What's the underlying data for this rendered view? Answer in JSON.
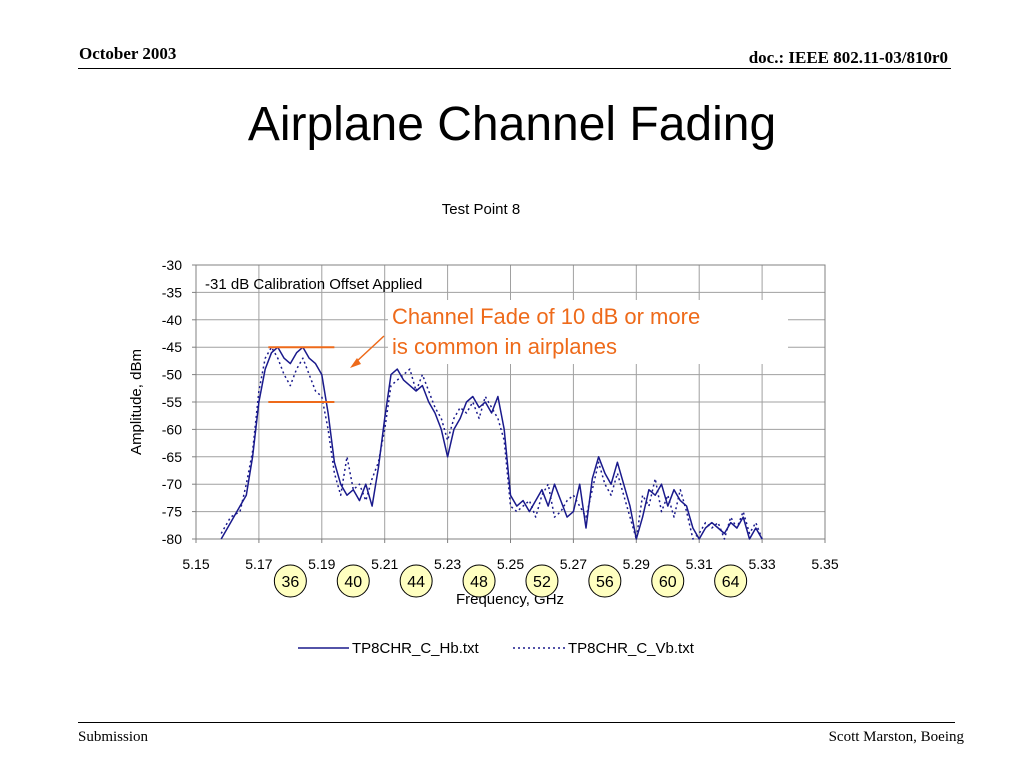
{
  "header": {
    "date": "October 2003",
    "doc": "doc.: IEEE 802.11-03/810r0"
  },
  "slide": {
    "title": "Airplane Channel Fading"
  },
  "footer": {
    "left": "Submission",
    "right": "Scott Marston, Boeing"
  },
  "annotation": {
    "callout_line1": "Channel Fade of 10 dB or more",
    "callout_line2": "is common in airplanes",
    "marker_levels": [
      -45,
      -55
    ],
    "marker_range": [
      5.173,
      5.194
    ],
    "color": "#ee6a1a"
  },
  "channels": [
    {
      "label": "36",
      "freq": 5.18
    },
    {
      "label": "40",
      "freq": 5.2
    },
    {
      "label": "44",
      "freq": 5.22
    },
    {
      "label": "48",
      "freq": 5.24
    },
    {
      "label": "52",
      "freq": 5.26
    },
    {
      "label": "56",
      "freq": 5.28
    },
    {
      "label": "60",
      "freq": 5.3
    },
    {
      "label": "64",
      "freq": 5.32
    }
  ],
  "chart_data": {
    "type": "line",
    "title": "Test Point 8",
    "subtitle": "-31 dB Calibration Offset Applied",
    "xlabel": "Frequency, GHz",
    "ylabel": "Amplitude, dBm",
    "xlim": [
      5.15,
      5.35
    ],
    "ylim": [
      -80,
      -30
    ],
    "xticks": [
      "5.15",
      "5.17",
      "5.19",
      "5.21",
      "5.23",
      "5.25",
      "5.27",
      "5.29",
      "5.31",
      "5.33",
      "5.35"
    ],
    "yticks": [
      "-30",
      "-35",
      "-40",
      "-45",
      "-50",
      "-55",
      "-60",
      "-65",
      "-70",
      "-75",
      "-80"
    ],
    "grid": true,
    "legend_position": "bottom",
    "series": [
      {
        "name": "TP8CHR_C_Hb.txt",
        "color": "#1a1a8c",
        "style": "solid",
        "x": [
          5.158,
          5.161,
          5.164,
          5.166,
          5.168,
          5.17,
          5.172,
          5.174,
          5.176,
          5.178,
          5.18,
          5.182,
          5.184,
          5.186,
          5.188,
          5.19,
          5.192,
          5.194,
          5.196,
          5.198,
          5.2,
          5.202,
          5.204,
          5.206,
          5.208,
          5.21,
          5.212,
          5.214,
          5.216,
          5.218,
          5.22,
          5.222,
          5.224,
          5.226,
          5.228,
          5.23,
          5.232,
          5.234,
          5.236,
          5.238,
          5.24,
          5.242,
          5.244,
          5.246,
          5.248,
          5.25,
          5.252,
          5.254,
          5.256,
          5.258,
          5.26,
          5.262,
          5.264,
          5.266,
          5.268,
          5.27,
          5.272,
          5.274,
          5.276,
          5.278,
          5.28,
          5.282,
          5.284,
          5.286,
          5.288,
          5.29,
          5.292,
          5.294,
          5.296,
          5.298,
          5.3,
          5.302,
          5.304,
          5.306,
          5.308,
          5.31,
          5.312,
          5.314,
          5.316,
          5.318,
          5.32,
          5.322,
          5.324,
          5.326,
          5.328,
          5.33
        ],
        "y": [
          -80,
          -77,
          -74,
          -72,
          -65,
          -55,
          -49,
          -46,
          -45,
          -47,
          -48,
          -46,
          -45,
          -47,
          -48,
          -50,
          -57,
          -66,
          -70,
          -72,
          -71,
          -73,
          -70,
          -74,
          -67,
          -58,
          -50,
          -49,
          -51,
          -52,
          -53,
          -52,
          -55,
          -57,
          -60,
          -65,
          -60,
          -58,
          -55,
          -54,
          -56,
          -55,
          -57,
          -54,
          -60,
          -72,
          -74,
          -73,
          -75,
          -73,
          -71,
          -74,
          -70,
          -73,
          -76,
          -75,
          -70,
          -78,
          -69,
          -65,
          -68,
          -70,
          -66,
          -70,
          -74,
          -80,
          -76,
          -71,
          -72,
          -70,
          -74,
          -71,
          -73,
          -74,
          -78,
          -80,
          -78,
          -77,
          -78,
          -79,
          -77,
          -78,
          -76,
          -80,
          -78,
          -80
        ]
      },
      {
        "name": "TP8CHR_C_Vb.txt",
        "color": "#1a1a8c",
        "style": "dotted",
        "x": [
          5.158,
          5.161,
          5.164,
          5.166,
          5.168,
          5.17,
          5.172,
          5.174,
          5.176,
          5.178,
          5.18,
          5.182,
          5.184,
          5.186,
          5.188,
          5.19,
          5.192,
          5.194,
          5.196,
          5.198,
          5.2,
          5.202,
          5.204,
          5.206,
          5.208,
          5.21,
          5.212,
          5.214,
          5.216,
          5.218,
          5.22,
          5.222,
          5.224,
          5.226,
          5.228,
          5.23,
          5.232,
          5.234,
          5.236,
          5.238,
          5.24,
          5.242,
          5.244,
          5.246,
          5.248,
          5.25,
          5.252,
          5.254,
          5.256,
          5.258,
          5.26,
          5.262,
          5.264,
          5.266,
          5.268,
          5.27,
          5.272,
          5.274,
          5.276,
          5.278,
          5.28,
          5.282,
          5.284,
          5.286,
          5.288,
          5.29,
          5.292,
          5.294,
          5.296,
          5.298,
          5.3,
          5.302,
          5.304,
          5.306,
          5.308,
          5.31,
          5.312,
          5.314,
          5.316,
          5.318,
          5.32,
          5.322,
          5.324,
          5.326,
          5.328,
          5.33
        ],
        "y": [
          -79,
          -76,
          -75,
          -70,
          -64,
          -53,
          -47,
          -45,
          -47,
          -50,
          -52,
          -49,
          -47,
          -50,
          -53,
          -54,
          -60,
          -68,
          -72,
          -65,
          -71,
          -70,
          -73,
          -69,
          -66,
          -60,
          -52,
          -51,
          -50,
          -49,
          -53,
          -50,
          -53,
          -56,
          -58,
          -62,
          -58,
          -56,
          -57,
          -55,
          -58,
          -54,
          -56,
          -58,
          -62,
          -74,
          -75,
          -74,
          -73,
          -76,
          -72,
          -70,
          -76,
          -75,
          -73,
          -72,
          -74,
          -76,
          -71,
          -66,
          -70,
          -72,
          -68,
          -72,
          -76,
          -80,
          -72,
          -74,
          -69,
          -75,
          -72,
          -76,
          -71,
          -75,
          -80,
          -79,
          -77,
          -78,
          -77,
          -80,
          -76,
          -78,
          -75,
          -79,
          -77,
          -80
        ]
      }
    ]
  }
}
